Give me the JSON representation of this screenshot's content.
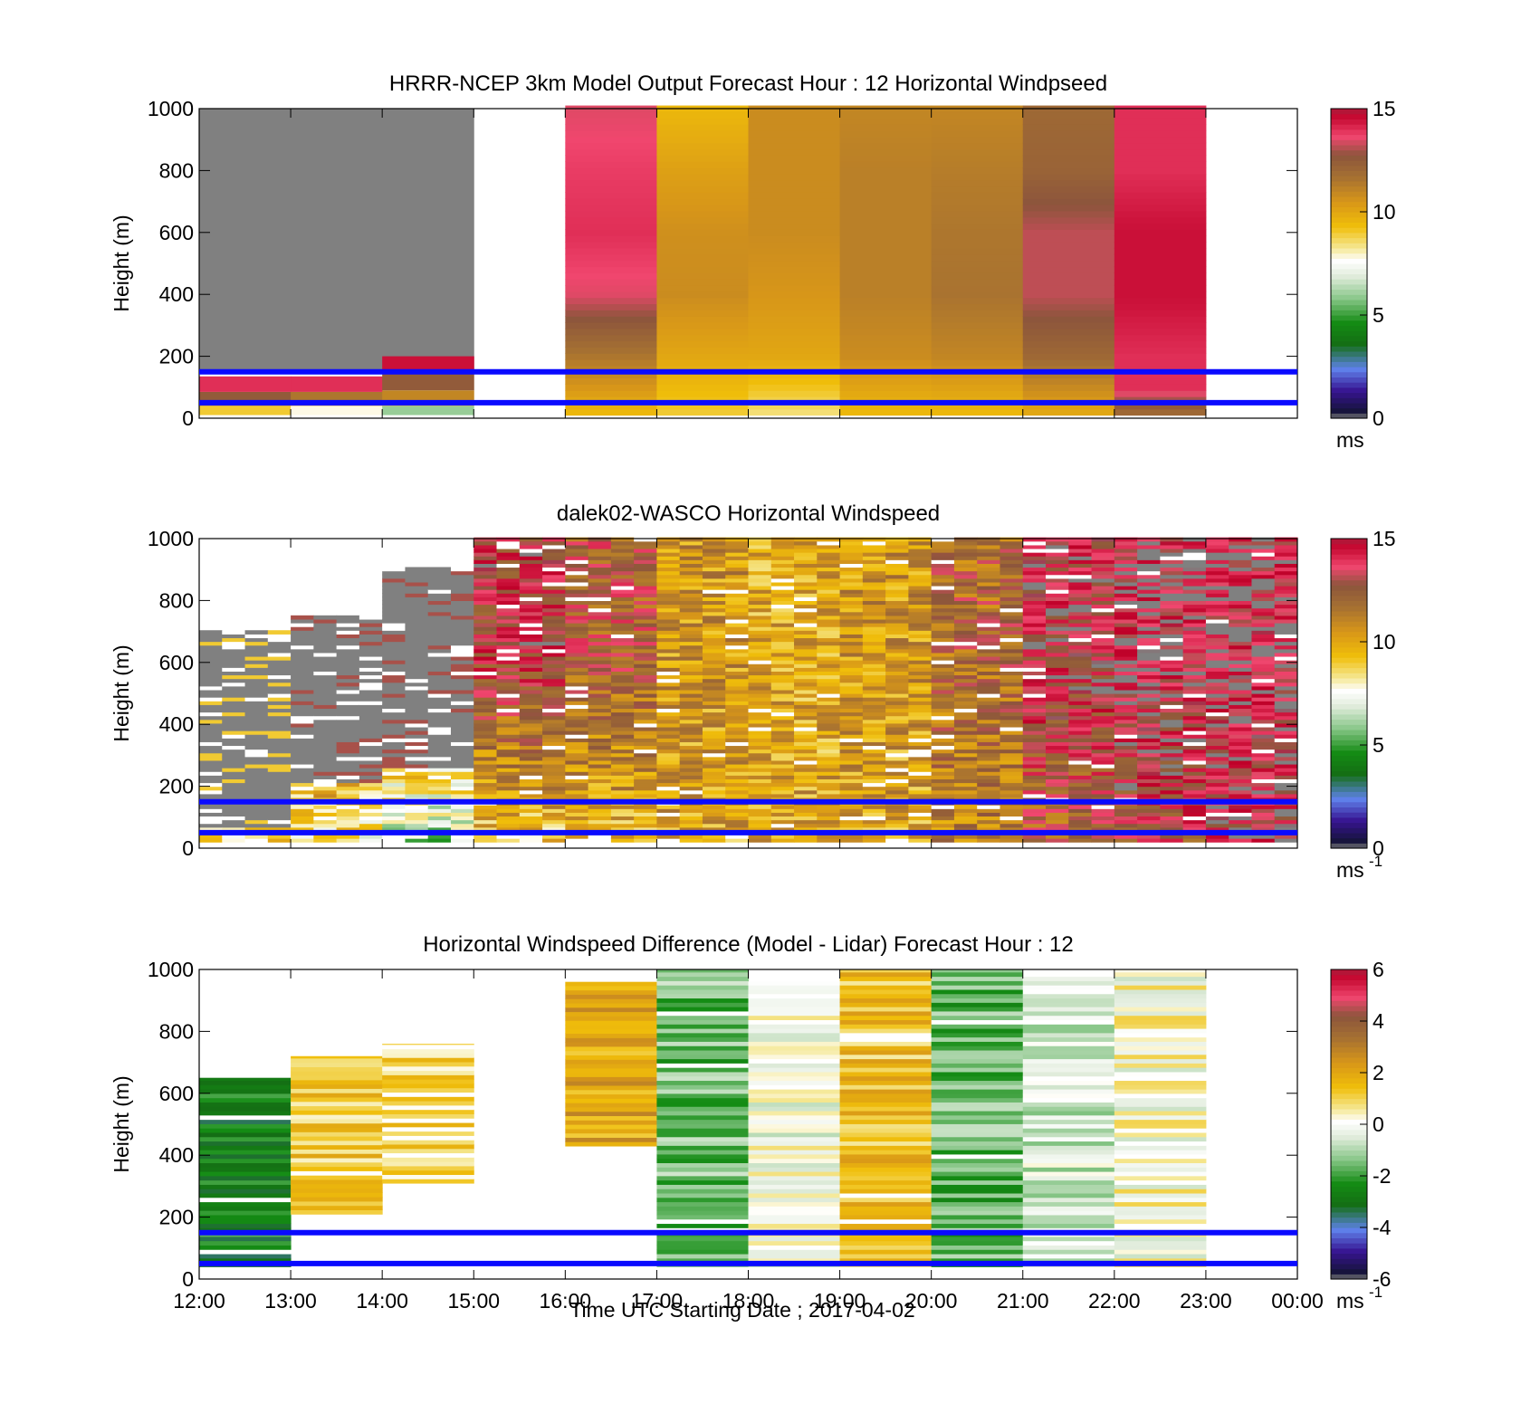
{
  "figure": {
    "xlabel": "Time UTC  Starting Date ; 2017-04-02",
    "x_ticks": [
      "12:00",
      "13:00",
      "14:00",
      "15:00",
      "16:00",
      "17:00",
      "18:00",
      "19:00",
      "20:00",
      "21:00",
      "22:00",
      "23:00",
      "00:00"
    ],
    "y_ticks": [
      "0",
      "200",
      "400",
      "600",
      "800",
      "1000"
    ],
    "ylabel": "Height (m)",
    "reference_lines_m": [
      50,
      150
    ],
    "reference_line_color": "#0a0aff"
  },
  "chart_data": [
    {
      "type": "heatmap",
      "title": "HRRR-NCEP 3km Model Output   Forecast Hour : 12 Horizontal Windpseed",
      "ylabel": "Height (m)",
      "ylim": [
        0,
        1000
      ],
      "x": [
        "12:00",
        "13:00",
        "14:00",
        "15:00",
        "16:00",
        "17:00",
        "18:00",
        "19:00",
        "20:00",
        "21:00",
        "22:00",
        "23:00"
      ],
      "colorbar": {
        "range": [
          0,
          15
        ],
        "ticks": [
          "0",
          "5",
          "10",
          "15"
        ],
        "unit": "ms"
      },
      "columns": [
        {
          "start": "12:00",
          "top_m": 1000,
          "upper_value": "no data",
          "low_levels": [
            {
              "height_m": 20,
              "value": 9
            },
            {
              "height_m": 60,
              "value": 12.5
            },
            {
              "height_m": 110,
              "value": 14
            }
          ]
        },
        {
          "start": "13:00",
          "top_m": 1000,
          "upper_value": "no data",
          "low_levels": [
            {
              "height_m": 20,
              "value": 7.8
            },
            {
              "height_m": 60,
              "value": 11.5
            },
            {
              "height_m": 110,
              "value": 14
            }
          ]
        },
        {
          "start": "14:00",
          "top_m": 1000,
          "upper_value": "no data",
          "low_levels": [
            {
              "height_m": 20,
              "value": 6
            },
            {
              "height_m": 60,
              "value": 11
            },
            {
              "height_m": 120,
              "value": 12.5
            },
            {
              "height_m": 180,
              "value": 14.5
            }
          ]
        },
        {
          "start": "15:00",
          "top_m": 0,
          "upper_value": null,
          "low_levels": []
        },
        {
          "start": "16:00",
          "top_m": 1000,
          "profile": [
            {
              "height_m": 20,
              "value": 9.5
            },
            {
              "height_m": 100,
              "value": 10.5
            },
            {
              "height_m": 200,
              "value": 11.5
            },
            {
              "height_m": 300,
              "value": 12.5
            },
            {
              "height_m": 400,
              "value": 13.5
            },
            {
              "height_m": 600,
              "value": 14
            },
            {
              "height_m": 800,
              "value": 13.8
            },
            {
              "height_m": 1000,
              "value": 13.5
            }
          ]
        },
        {
          "start": "17:00",
          "top_m": 1000,
          "profile": [
            {
              "height_m": 20,
              "value": 9
            },
            {
              "height_m": 200,
              "value": 10
            },
            {
              "height_m": 400,
              "value": 10.8
            },
            {
              "height_m": 600,
              "value": 10.7
            },
            {
              "height_m": 800,
              "value": 10.2
            },
            {
              "height_m": 1000,
              "value": 9.5
            }
          ]
        },
        {
          "start": "18:00",
          "top_m": 1000,
          "profile": [
            {
              "height_m": 20,
              "value": 8.5
            },
            {
              "height_m": 200,
              "value": 10
            },
            {
              "height_m": 400,
              "value": 10.5
            },
            {
              "height_m": 600,
              "value": 10.8
            },
            {
              "height_m": 800,
              "value": 10.8
            },
            {
              "height_m": 1000,
              "value": 10.8
            }
          ]
        },
        {
          "start": "19:00",
          "top_m": 1000,
          "profile": [
            {
              "height_m": 20,
              "value": 9.5
            },
            {
              "height_m": 200,
              "value": 10.8
            },
            {
              "height_m": 400,
              "value": 11.2
            },
            {
              "height_m": 600,
              "value": 11.2
            },
            {
              "height_m": 800,
              "value": 11.2
            },
            {
              "height_m": 1000,
              "value": 11
            }
          ]
        },
        {
          "start": "20:00",
          "top_m": 1000,
          "profile": [
            {
              "height_m": 20,
              "value": 9.5
            },
            {
              "height_m": 200,
              "value": 11
            },
            {
              "height_m": 400,
              "value": 11.6
            },
            {
              "height_m": 600,
              "value": 11.5
            },
            {
              "height_m": 800,
              "value": 11.3
            },
            {
              "height_m": 1000,
              "value": 11
            }
          ]
        },
        {
          "start": "21:00",
          "top_m": 1000,
          "profile": [
            {
              "height_m": 20,
              "value": 10
            },
            {
              "height_m": 200,
              "value": 12
            },
            {
              "height_m": 400,
              "value": 13.2
            },
            {
              "height_m": 600,
              "value": 13.2
            },
            {
              "height_m": 800,
              "value": 12.2
            },
            {
              "height_m": 1000,
              "value": 12
            }
          ]
        },
        {
          "start": "22:00",
          "top_m": 1000,
          "profile": [
            {
              "height_m": 20,
              "value": 12
            },
            {
              "height_m": 100,
              "value": 14
            },
            {
              "height_m": 200,
              "value": 14
            },
            {
              "height_m": 400,
              "value": 14.5
            },
            {
              "height_m": 600,
              "value": 14.5
            },
            {
              "height_m": 800,
              "value": 14
            },
            {
              "height_m": 1000,
              "value": 14
            }
          ]
        },
        {
          "start": "23:00",
          "top_m": 0,
          "profile": []
        }
      ]
    },
    {
      "type": "heatmap",
      "title": "dalek02-WASCO  Horizontal Windspeed",
      "ylabel": "Height (m)",
      "ylim": [
        0,
        1000
      ],
      "x": [
        "12:00",
        "13:00",
        "14:00",
        "15:00",
        "16:00",
        "17:00",
        "18:00",
        "19:00",
        "20:00",
        "21:00",
        "22:00",
        "23:00"
      ],
      "colorbar": {
        "range": [
          0,
          15
        ],
        "ticks": [
          "0",
          "5",
          "10",
          "15"
        ],
        "unit": "ms",
        "unit_superscript": "-1"
      },
      "hour_mean_profiles": [
        {
          "start": "12:00",
          "valid_to_m": 700,
          "low": 9,
          "high": 9,
          "no_data_above_m": 60
        },
        {
          "start": "13:00",
          "valid_to_m": 750,
          "low": 8,
          "high": 13,
          "no_data_above_m": 200
        },
        {
          "start": "14:00",
          "valid_to_m": 900,
          "low": 6,
          "high": 13,
          "no_data_above_m": 250
        },
        {
          "start": "15:00",
          "valid_to_m": 1000,
          "low": 9,
          "high": 13.5
        },
        {
          "start": "16:00",
          "valid_to_m": 1000,
          "low": 9.5,
          "high": 12.5
        },
        {
          "start": "17:00",
          "valid_to_m": 1000,
          "low": 10,
          "high": 10.5
        },
        {
          "start": "18:00",
          "valid_to_m": 1000,
          "low": 10,
          "high": 10
        },
        {
          "start": "19:00",
          "valid_to_m": 1000,
          "low": 10,
          "high": 10.5
        },
        {
          "start": "20:00",
          "valid_to_m": 1000,
          "low": 11,
          "high": 12
        },
        {
          "start": "21:00",
          "valid_to_m": 1000,
          "low": 12,
          "high": 14
        },
        {
          "start": "22:00",
          "valid_to_m": 1000,
          "low": 13,
          "high": 14.5
        },
        {
          "start": "23:00",
          "valid_to_m": 1000,
          "low": 14,
          "high": 14.5
        }
      ]
    },
    {
      "type": "heatmap",
      "title": "Horizontal Windspeed Difference (Model - Lidar) Forecast Hour : 12",
      "ylabel": "Height (m)",
      "xlabel": "Time UTC  Starting Date ; 2017-04-02",
      "ylim": [
        0,
        1000
      ],
      "x": [
        "12:00",
        "13:00",
        "14:00",
        "15:00",
        "16:00",
        "17:00",
        "18:00",
        "19:00",
        "20:00",
        "21:00",
        "22:00",
        "23:00"
      ],
      "colorbar": {
        "range": [
          -6,
          6
        ],
        "ticks": [
          "-6",
          "-4",
          "-2",
          "0",
          "2",
          "4",
          "6"
        ],
        "unit": "ms",
        "unit_superscript": "-1"
      },
      "columns": [
        {
          "start": "12:00",
          "bottom_m": 40,
          "top_m": 650,
          "mean_difference": -2.6
        },
        {
          "start": "13:00",
          "bottom_m": 210,
          "top_m": 720,
          "mean_difference": 1.2
        },
        {
          "start": "14:00",
          "bottom_m": 310,
          "top_m": 760,
          "mean_difference": 1.0
        },
        {
          "start": "15:00",
          "bottom_m": 0,
          "top_m": 0,
          "mean_difference": null
        },
        {
          "start": "16:00",
          "bottom_m": 430,
          "top_m": 960,
          "mean_difference": 2.0
        },
        {
          "start": "17:00",
          "bottom_m": 40,
          "top_m": 1000,
          "mean_difference": -1.5
        },
        {
          "start": "18:00",
          "bottom_m": 40,
          "top_m": 960,
          "mean_difference": 0
        },
        {
          "start": "19:00",
          "bottom_m": 40,
          "top_m": 1000,
          "mean_difference": 1.4
        },
        {
          "start": "20:00",
          "bottom_m": 40,
          "top_m": 1000,
          "mean_difference": -1.6
        },
        {
          "start": "21:00",
          "bottom_m": 40,
          "top_m": 1000,
          "mean_difference": -0.6
        },
        {
          "start": "22:00",
          "bottom_m": 40,
          "top_m": 1000,
          "mean_difference": 0.2
        },
        {
          "start": "23:00",
          "bottom_m": 0,
          "top_m": 0,
          "mean_difference": null
        }
      ]
    }
  ]
}
